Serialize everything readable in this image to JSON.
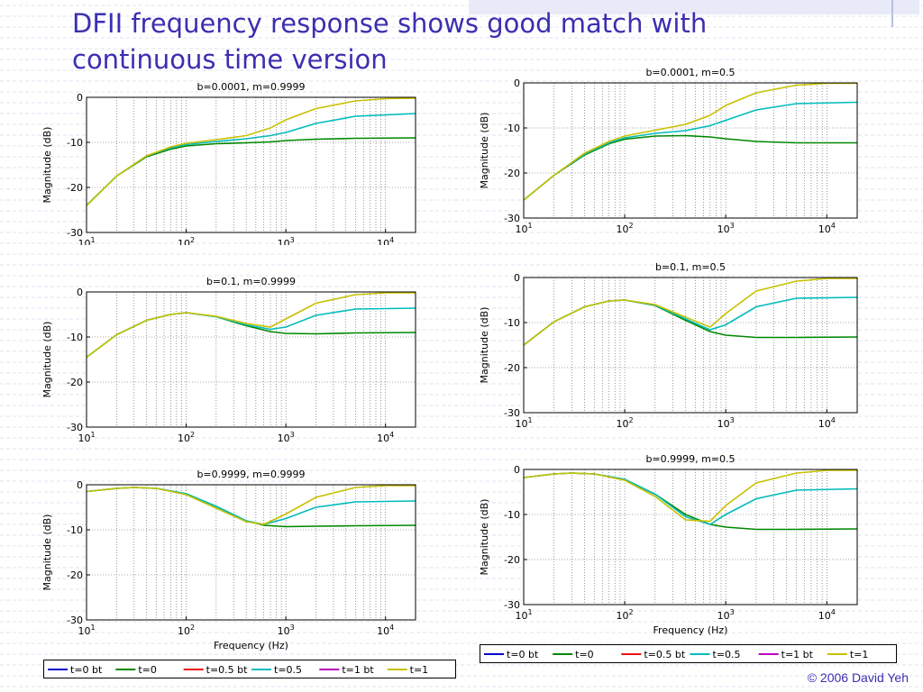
{
  "slide": {
    "title": "DFII frequency response shows good match with continuous time version",
    "credit": "© 2006 David Yeh"
  },
  "colors": {
    "t0bt": "#0000cc",
    "t0": "#008800",
    "t05bt": "#ee1111",
    "t05": "#00bbbb",
    "t1bt": "#bb00bb",
    "t1": "#c8c000",
    "title": "#3a2fb0"
  },
  "legend": {
    "entries": [
      {
        "key": "t0bt",
        "label": "t=0 bt"
      },
      {
        "key": "t0",
        "label": "t=0"
      },
      {
        "key": "t05bt",
        "label": "t=0.5 bt"
      },
      {
        "key": "t05",
        "label": "t=0.5"
      },
      {
        "key": "t1bt",
        "label": "t=1 bt"
      },
      {
        "key": "t1",
        "label": "t=1"
      }
    ]
  },
  "chart_data": [
    {
      "type": "line",
      "title": "b=0.0001, m=0.9999",
      "xlabel": "",
      "ylabel": "Magnitude (dB)",
      "x_scale": "log",
      "xlim": [
        10,
        20000
      ],
      "ylim": [
        -30,
        0
      ],
      "yticks": [
        "0",
        "-10",
        "-20",
        "-30"
      ],
      "xticks": [
        "10^1",
        "10^2",
        "10^3",
        "10^4"
      ],
      "grid": true,
      "series": [
        {
          "key": "t0",
          "x": [
            10,
            20,
            40,
            70,
            100,
            200,
            400,
            700,
            1000,
            2000,
            5000,
            20000
          ],
          "y": [
            -24,
            -17.5,
            -13.2,
            -11.5,
            -10.8,
            -10.3,
            -10.1,
            -9.9,
            -9.6,
            -9.3,
            -9.1,
            -9.0
          ]
        },
        {
          "key": "t05",
          "x": [
            10,
            20,
            40,
            70,
            100,
            200,
            400,
            700,
            1000,
            2000,
            5000,
            20000
          ],
          "y": [
            -24,
            -17.5,
            -13,
            -11.2,
            -10.5,
            -9.8,
            -9.2,
            -8.5,
            -7.8,
            -5.8,
            -4.2,
            -3.6
          ]
        },
        {
          "key": "t1",
          "x": [
            10,
            20,
            40,
            70,
            100,
            200,
            400,
            700,
            1000,
            2000,
            5000,
            10000,
            20000
          ],
          "y": [
            -24,
            -17.5,
            -13,
            -11,
            -10.2,
            -9.4,
            -8.5,
            -6.8,
            -5.0,
            -2.5,
            -0.8,
            -0.3,
            -0.2
          ]
        }
      ]
    },
    {
      "type": "line",
      "title": "b=0.0001, m=0.5",
      "xlabel": "",
      "ylabel": "Magnitude (dB)",
      "x_scale": "log",
      "xlim": [
        10,
        20000
      ],
      "ylim": [
        -30,
        0
      ],
      "yticks": [
        "0",
        "-10",
        "-20",
        "-30"
      ],
      "xticks": [
        "10^1",
        "10^2",
        "10^3",
        "10^4"
      ],
      "grid": true,
      "series": [
        {
          "key": "t0",
          "x": [
            10,
            20,
            40,
            70,
            100,
            200,
            400,
            700,
            1000,
            2000,
            5000,
            20000
          ],
          "y": [
            -26,
            -20.5,
            -16,
            -13.5,
            -12.5,
            -11.8,
            -11.7,
            -12,
            -12.4,
            -13,
            -13.3,
            -13.3
          ]
        },
        {
          "key": "t05",
          "x": [
            10,
            20,
            40,
            70,
            100,
            200,
            400,
            700,
            1000,
            2000,
            5000,
            20000
          ],
          "y": [
            -26,
            -20.5,
            -15.8,
            -13.3,
            -12.2,
            -11.2,
            -10.6,
            -9.5,
            -8.3,
            -6,
            -4.6,
            -4.3
          ]
        },
        {
          "key": "t1",
          "x": [
            10,
            20,
            40,
            70,
            100,
            200,
            400,
            700,
            1000,
            2000,
            5000,
            10000,
            20000
          ],
          "y": [
            -26,
            -20.5,
            -15.6,
            -13,
            -11.8,
            -10.5,
            -9.2,
            -7.2,
            -5.0,
            -2.2,
            -0.5,
            -0.1,
            -0.1
          ]
        }
      ]
    },
    {
      "type": "line",
      "title": "b=0.1, m=0.9999",
      "xlabel": "",
      "ylabel": "Magnitude (dB)",
      "x_scale": "log",
      "xlim": [
        10,
        20000
      ],
      "ylim": [
        -30,
        0
      ],
      "yticks": [
        "0",
        "-10",
        "-20",
        "-30"
      ],
      "xticks": [
        "10^1",
        "10^2",
        "10^3",
        "10^4"
      ],
      "grid": true,
      "series": [
        {
          "key": "t0",
          "x": [
            10,
            20,
            40,
            70,
            100,
            200,
            400,
            700,
            1000,
            2000,
            5000,
            20000
          ],
          "y": [
            -14.5,
            -9.5,
            -6.3,
            -5.0,
            -4.6,
            -5.5,
            -7.5,
            -8.8,
            -9.2,
            -9.3,
            -9.1,
            -9.0
          ]
        },
        {
          "key": "t05",
          "x": [
            10,
            20,
            40,
            70,
            100,
            200,
            400,
            700,
            1000,
            2000,
            5000,
            20000
          ],
          "y": [
            -14.5,
            -9.5,
            -6.3,
            -5.0,
            -4.6,
            -5.5,
            -7.3,
            -8.3,
            -7.8,
            -5.2,
            -3.8,
            -3.6
          ]
        },
        {
          "key": "t1",
          "x": [
            10,
            20,
            40,
            70,
            100,
            200,
            400,
            700,
            1000,
            2000,
            5000,
            10000,
            20000
          ],
          "y": [
            -14.5,
            -9.5,
            -6.3,
            -5.0,
            -4.6,
            -5.4,
            -7.0,
            -7.8,
            -6.0,
            -2.5,
            -0.6,
            -0.2,
            -0.2
          ]
        }
      ]
    },
    {
      "type": "line",
      "title": "b=0.1, m=0.5",
      "xlabel": "",
      "ylabel": "Magnitude (dB)",
      "x_scale": "log",
      "xlim": [
        10,
        20000
      ],
      "ylim": [
        -30,
        0
      ],
      "yticks": [
        "0",
        "-10",
        "-20",
        "-30"
      ],
      "xticks": [
        "10^1",
        "10^2",
        "10^3",
        "10^4"
      ],
      "grid": true,
      "series": [
        {
          "key": "t0",
          "x": [
            10,
            20,
            40,
            70,
            100,
            200,
            400,
            700,
            1000,
            2000,
            5000,
            20000
          ],
          "y": [
            -15,
            -9.8,
            -6.5,
            -5.2,
            -5.0,
            -6.2,
            -9.5,
            -12,
            -12.8,
            -13.3,
            -13.3,
            -13.2
          ]
        },
        {
          "key": "t05",
          "x": [
            10,
            20,
            40,
            70,
            100,
            200,
            400,
            700,
            1000,
            2000,
            5000,
            20000
          ],
          "y": [
            -15,
            -9.8,
            -6.5,
            -5.2,
            -5.0,
            -6.1,
            -9.2,
            -11.6,
            -10.5,
            -6.5,
            -4.6,
            -4.4
          ]
        },
        {
          "key": "t1",
          "x": [
            10,
            20,
            40,
            70,
            100,
            200,
            400,
            700,
            1000,
            2000,
            5000,
            10000,
            20000
          ],
          "y": [
            -15,
            -9.8,
            -6.5,
            -5.2,
            -5.0,
            -6.0,
            -8.8,
            -11.0,
            -8.0,
            -3.0,
            -0.8,
            -0.2,
            -0.2
          ]
        }
      ]
    },
    {
      "type": "line",
      "title": "b=0.9999, m=0.9999",
      "xlabel": "Frequency (Hz)",
      "ylabel": "Magnitude (dB)",
      "x_scale": "log",
      "xlim": [
        10,
        20000
      ],
      "ylim": [
        -30,
        0
      ],
      "yticks": [
        "0",
        "-10",
        "-20",
        "-30"
      ],
      "xticks": [
        "10^1",
        "10^2",
        "10^3",
        "10^4"
      ],
      "grid": true,
      "series": [
        {
          "key": "t0",
          "x": [
            10,
            20,
            30,
            50,
            100,
            200,
            400,
            600,
            1000,
            2000,
            5000,
            20000
          ],
          "y": [
            -1.5,
            -0.8,
            -0.6,
            -0.8,
            -2.0,
            -4.8,
            -8.0,
            -9.0,
            -9.3,
            -9.2,
            -9.1,
            -9.0
          ]
        },
        {
          "key": "t05",
          "x": [
            10,
            20,
            30,
            50,
            100,
            200,
            400,
            600,
            1000,
            2000,
            5000,
            20000
          ],
          "y": [
            -1.5,
            -0.8,
            -0.6,
            -0.8,
            -2.0,
            -4.8,
            -8.0,
            -8.8,
            -7.5,
            -5.0,
            -3.8,
            -3.6
          ]
        },
        {
          "key": "t1",
          "x": [
            10,
            20,
            30,
            50,
            100,
            200,
            400,
            600,
            1000,
            2000,
            5000,
            10000,
            20000
          ],
          "y": [
            -1.5,
            -0.8,
            -0.6,
            -0.8,
            -2.2,
            -5.2,
            -8.2,
            -8.8,
            -6.5,
            -2.8,
            -0.6,
            -0.2,
            -0.2
          ]
        }
      ]
    },
    {
      "type": "line",
      "title": "b=0.9999, m=0.5",
      "xlabel": "Frequency (Hz)",
      "ylabel": "Magnitude (dB)",
      "x_scale": "log",
      "xlim": [
        10,
        20000
      ],
      "ylim": [
        -30,
        0
      ],
      "yticks": [
        "0",
        "-10",
        "-20",
        "-30"
      ],
      "xticks": [
        "10^1",
        "10^2",
        "10^3",
        "10^4"
      ],
      "grid": true,
      "series": [
        {
          "key": "t0",
          "x": [
            10,
            20,
            30,
            50,
            100,
            200,
            400,
            700,
            1000,
            2000,
            5000,
            20000
          ],
          "y": [
            -1.8,
            -1.0,
            -0.8,
            -1.0,
            -2.2,
            -5.5,
            -10.0,
            -12.2,
            -12.8,
            -13.3,
            -13.3,
            -13.2
          ]
        },
        {
          "key": "t05",
          "x": [
            10,
            20,
            30,
            50,
            100,
            200,
            400,
            700,
            1000,
            2000,
            5000,
            20000
          ],
          "y": [
            -1.8,
            -1.0,
            -0.8,
            -1.0,
            -2.2,
            -5.5,
            -10.5,
            -12.2,
            -10.0,
            -6.5,
            -4.6,
            -4.3
          ]
        },
        {
          "key": "t1",
          "x": [
            10,
            20,
            30,
            50,
            100,
            200,
            400,
            700,
            1000,
            2000,
            5000,
            10000,
            20000
          ],
          "y": [
            -1.8,
            -1.0,
            -0.8,
            -1.0,
            -2.4,
            -6.0,
            -11.2,
            -11.5,
            -8.0,
            -3.0,
            -0.8,
            -0.2,
            -0.2
          ]
        }
      ]
    }
  ]
}
